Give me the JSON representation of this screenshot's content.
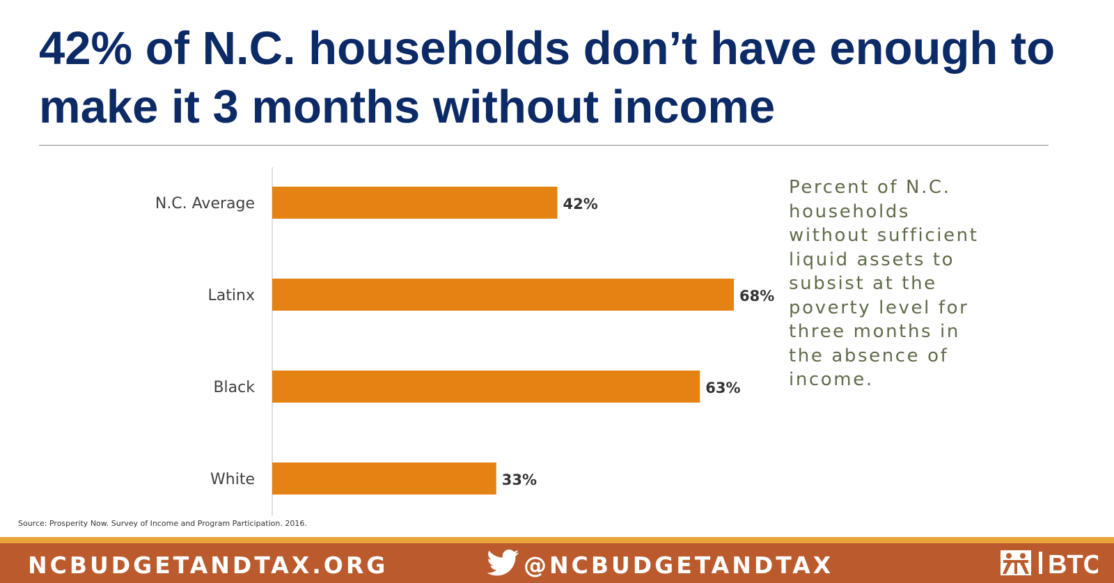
{
  "header": {
    "title": "42% of N.C. households don’t have enough to make it 3 months without income"
  },
  "note": "Percent of N.C. households without sufficient liquid assets to subsist at the poverty level for three months in the absence of income.",
  "source": "Source: Prosperity Now. Survey of Income and Program Participation. 2016.",
  "footer": {
    "website": "NCBUDGETANDTAX.ORG",
    "twitter_handle": "@NCBUDGETANDTAX",
    "twitter_icon": "twitter-bird-icon",
    "logo_text": "BTC"
  },
  "colors": {
    "title": "#0b2a66",
    "bar": "#e48213",
    "footer_band": "#bb5a2c",
    "footer_stripe": "#e8a33a",
    "note_text": "#5f6b49"
  },
  "chart_data": {
    "type": "bar",
    "orientation": "horizontal",
    "categories": [
      "N.C. Average",
      "Latinx",
      "Black",
      "White"
    ],
    "values": [
      42,
      68,
      63,
      33
    ],
    "value_labels": [
      "42%",
      "68%",
      "63%",
      "33%"
    ],
    "unit": "%",
    "xlim": [
      0,
      100
    ],
    "grid": false,
    "legend": "none"
  }
}
